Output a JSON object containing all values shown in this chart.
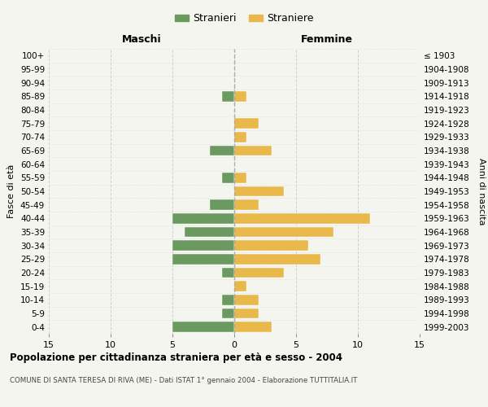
{
  "age_groups": [
    "0-4",
    "5-9",
    "10-14",
    "15-19",
    "20-24",
    "25-29",
    "30-34",
    "35-39",
    "40-44",
    "45-49",
    "50-54",
    "55-59",
    "60-64",
    "65-69",
    "70-74",
    "75-79",
    "80-84",
    "85-89",
    "90-94",
    "95-99",
    "100+"
  ],
  "birth_years": [
    "1999-2003",
    "1994-1998",
    "1989-1993",
    "1984-1988",
    "1979-1983",
    "1974-1978",
    "1969-1973",
    "1964-1968",
    "1959-1963",
    "1954-1958",
    "1949-1953",
    "1944-1948",
    "1939-1943",
    "1934-1938",
    "1929-1933",
    "1924-1928",
    "1919-1923",
    "1914-1918",
    "1909-1913",
    "1904-1908",
    "≤ 1903"
  ],
  "maschi": [
    5,
    1,
    1,
    0,
    1,
    5,
    5,
    4,
    5,
    2,
    0,
    1,
    0,
    2,
    0,
    0,
    0,
    1,
    0,
    0,
    0
  ],
  "femmine": [
    3,
    2,
    2,
    1,
    4,
    7,
    6,
    8,
    11,
    2,
    4,
    1,
    0,
    3,
    1,
    2,
    0,
    1,
    0,
    0,
    0
  ],
  "maschi_color": "#6a9a5f",
  "femmine_color": "#e8b84b",
  "bg_color": "#f5f5f0",
  "grid_color": "#cccccc",
  "title": "Popolazione per cittadinanza straniera per età e sesso - 2004",
  "subtitle": "COMUNE DI SANTA TERESA DI RIVA (ME) - Dati ISTAT 1° gennaio 2004 - Elaborazione TUTTITALIA.IT",
  "legend_maschi": "Stranieri",
  "legend_femmine": "Straniere",
  "xlim": 15,
  "xlabel_left": "Maschi",
  "xlabel_right": "Femmine",
  "ylabel": "Fasce di età",
  "ylabel_right": "Anni di nascita"
}
